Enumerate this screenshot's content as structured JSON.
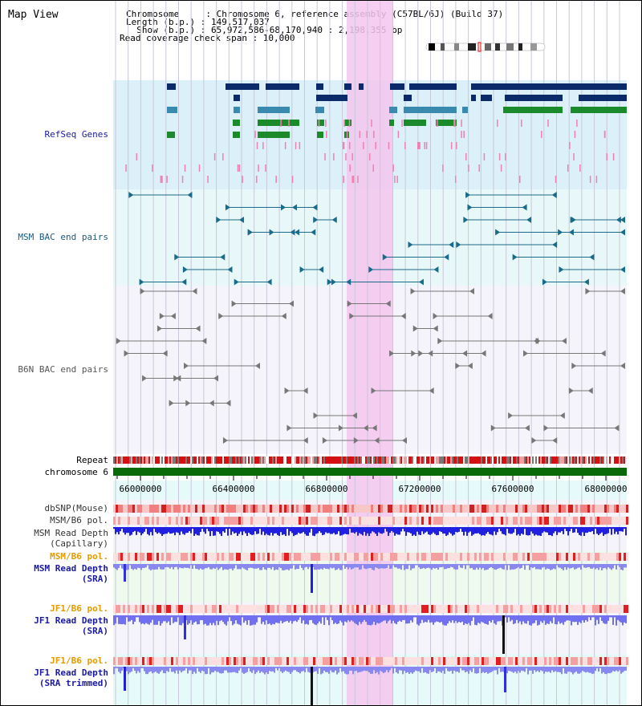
{
  "title": "Map View",
  "header": {
    "chromosome": "Chromosome     : Chromosome 6, reference assembly (C57BL/6J) (Build 37)",
    "length": "Length (b.p.) : 149,517,037",
    "show": "  Show (b.p.) : 65,972,586-68,170,940 : 2,198,355 bp",
    "span": "Read coverage check span : 10,000"
  },
  "tracks": {
    "refseq": "RefSeq Genes",
    "msm_bac": "MSM BAC end pairs",
    "b6n_bac": "B6N BAC end pairs",
    "repeat": "Repeat",
    "chromosome": "chromosome 6",
    "dbsnp": "dbSNP(Mouse)",
    "msm_pol1": "MSM/B6 pol.",
    "msm_depth_cap_1": "MSM Read Depth",
    "msm_depth_cap_2": "(Capillary)",
    "msm_pol2": "MSM/B6 pol.",
    "msm_depth_sra_1": "MSM Read Depth",
    "msm_depth_sra_2": "(SRA)",
    "jf1_pol1": "JF1/B6 pol.",
    "jf1_depth_sra_1": "JF1 Read Depth",
    "jf1_depth_sra_2": "(SRA)",
    "jf1_pol2": "JF1/B6 pol.",
    "jf1_depth_trim_1": "JF1 Read Depth",
    "jf1_depth_trim_2": "(SRA trimmed)"
  },
  "axis": {
    "ticks": [
      "66000000",
      "66400000",
      "66800000",
      "67200000",
      "67600000",
      "68000000"
    ]
  },
  "colors": {
    "refseq_label": "#1a1aa0",
    "msm_bac_label": "#1a5a80",
    "b6n_label": "#555555",
    "orange_label": "#e69a00",
    "blue_label": "#1a1aa0",
    "highlight": "#f5c6ee",
    "gene_dark": "#0a2a6a",
    "gene_green": "#0a6a1a"
  }
}
